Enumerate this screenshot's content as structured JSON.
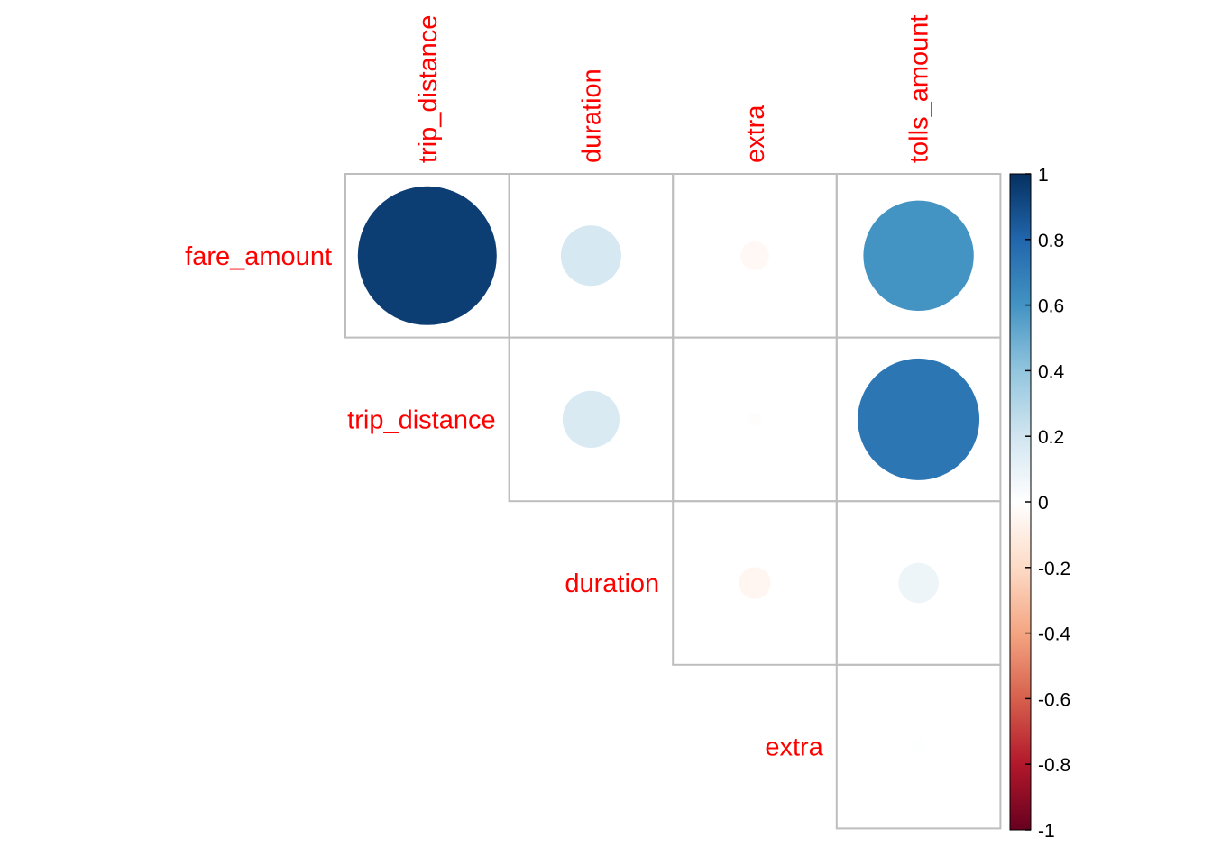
{
  "chart_data": {
    "type": "heatmap",
    "style": "circle correlation matrix (upper triangle)",
    "row_labels": [
      "fare_amount",
      "trip_distance",
      "duration",
      "extra"
    ],
    "col_labels": [
      "trip_distance",
      "duration",
      "extra",
      "tolls_amount"
    ],
    "cells": [
      {
        "row": "fare_amount",
        "col": "trip_distance",
        "value": 0.95
      },
      {
        "row": "fare_amount",
        "col": "duration",
        "value": 0.18
      },
      {
        "row": "fare_amount",
        "col": "extra",
        "value": -0.04
      },
      {
        "row": "fare_amount",
        "col": "tolls_amount",
        "value": 0.6
      },
      {
        "row": "trip_distance",
        "col": "duration",
        "value": 0.16
      },
      {
        "row": "trip_distance",
        "col": "extra",
        "value": -0.01
      },
      {
        "row": "trip_distance",
        "col": "tolls_amount",
        "value": 0.73
      },
      {
        "row": "duration",
        "col": "extra",
        "value": -0.05
      },
      {
        "row": "duration",
        "col": "tolls_amount",
        "value": 0.08
      },
      {
        "row": "extra",
        "col": "tolls_amount",
        "value": 0.01
      }
    ],
    "colorbar": {
      "range": [
        -1,
        1
      ],
      "ticks": [
        "1",
        "0.8",
        "0.6",
        "0.4",
        "0.2",
        "0",
        "-0.2",
        "-0.4",
        "-0.6",
        "-0.8",
        "-1"
      ],
      "position": "right"
    },
    "colors": {
      "label": "#ff0000",
      "grid": "#bebebe",
      "scale": [
        "#67001f",
        "#b2182b",
        "#d6604d",
        "#f4a582",
        "#fddbc7",
        "#ffffff",
        "#d1e5f0",
        "#92c5de",
        "#4393c3",
        "#2166ac",
        "#053061"
      ]
    }
  }
}
